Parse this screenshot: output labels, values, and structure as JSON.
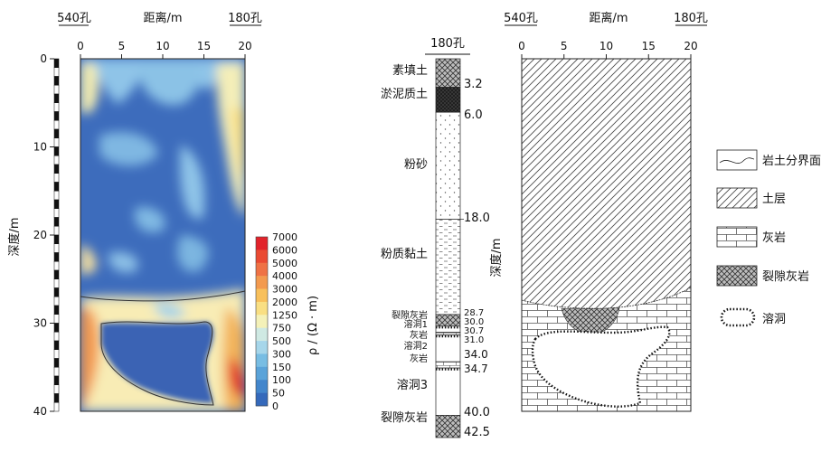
{
  "left_panel": {
    "hole_left": "540孔",
    "hole_right": "180孔",
    "x_axis_label": "距离/m",
    "x_ticks": [
      0,
      5,
      10,
      15,
      20
    ],
    "y_axis_label": "深度/m",
    "y_ticks": [
      0,
      10,
      20,
      30,
      40
    ],
    "colorbar": {
      "label": "ρ / (Ω · m)",
      "levels": [
        "7000",
        "6000",
        "5000",
        "4000",
        "3000",
        "2000",
        "1250",
        "750",
        "500",
        "300",
        "150",
        "100",
        "50",
        "0"
      ],
      "colors": [
        "#e2232b",
        "#ea4b33",
        "#ef7245",
        "#f39a4f",
        "#f8c05b",
        "#f9df83",
        "#f4f1b8",
        "#cfe9e3",
        "#a6d6ea",
        "#78bde3",
        "#5aa3d9",
        "#4386cc",
        "#3569bb"
      ]
    }
  },
  "column": {
    "title": "180孔",
    "layers": [
      {
        "name": "素填土",
        "top": 0,
        "bottom": 3.2,
        "pattern": "crosshatch"
      },
      {
        "name": "淤泥质土",
        "top": 3.2,
        "bottom": 6.0,
        "pattern": "dark"
      },
      {
        "name": "粉砂",
        "top": 6.0,
        "bottom": 18.0,
        "pattern": "dots"
      },
      {
        "name": "粉质黏土",
        "top": 18.0,
        "bottom": 28.7,
        "pattern": "dashes"
      },
      {
        "name": "裂隙灰岩",
        "top": 28.7,
        "bottom": 30.0,
        "pattern": "crosshatch"
      },
      {
        "name": "溶洞1",
        "top": 30.0,
        "bottom": 30.7,
        "pattern": "cave"
      },
      {
        "name": "灰岩",
        "top": 30.7,
        "bottom": 31.0,
        "pattern": "brick"
      },
      {
        "name": "溶洞2",
        "top": 31.0,
        "bottom": 34.0,
        "pattern": "cave"
      },
      {
        "name": "灰岩",
        "top": 34.0,
        "bottom": 34.7,
        "pattern": "brick"
      },
      {
        "name": "溶洞3",
        "top": 34.7,
        "bottom": 40.0,
        "pattern": "cave"
      },
      {
        "name": "裂隙灰岩",
        "top": 40.0,
        "bottom": 42.5,
        "pattern": "crosshatch"
      }
    ],
    "depth_labels": [
      "3.2",
      "6.0",
      "18.0",
      "28.7",
      "30.0",
      "30.7",
      "31.0",
      "34.0",
      "34.7",
      "40.0",
      "42.5"
    ],
    "y_axis_label": "深度/m"
  },
  "right_panel": {
    "hole_left": "540孔",
    "hole_right": "180孔",
    "x_axis_label": "距离/m",
    "x_ticks": [
      0,
      5,
      10,
      15,
      20
    ]
  },
  "legend": [
    {
      "label": "岩土分界面",
      "icon": "wavy-line-icon"
    },
    {
      "label": "土层",
      "icon": "diagonal-hatch-icon"
    },
    {
      "label": "灰岩",
      "icon": "brick-icon"
    },
    {
      "label": "裂隙灰岩",
      "icon": "crosshatch-icon"
    },
    {
      "label": "溶洞",
      "icon": "cave-outline-icon"
    }
  ]
}
